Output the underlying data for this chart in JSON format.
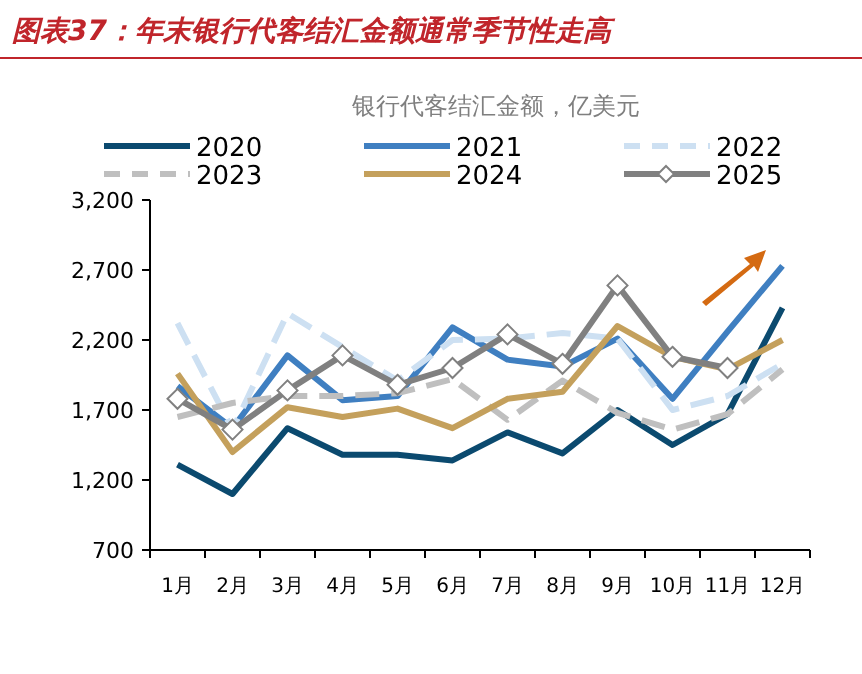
{
  "chart_data": {
    "type": "line",
    "title": "图表37：年末银行代客结汇金额通常季节性走高",
    "subtitle": "银行代客结汇金额，亿美元",
    "categories": [
      "1月",
      "2月",
      "3月",
      "4月",
      "5月",
      "6月",
      "7月",
      "8月",
      "9月",
      "10月",
      "11月",
      "12月"
    ],
    "series": [
      {
        "name": "2020",
        "color": "#0b4a6f",
        "line_style": "solid",
        "values": [
          1310,
          1100,
          1570,
          1380,
          1380,
          1340,
          1540,
          1390,
          1700,
          1450,
          1670,
          2430
        ]
      },
      {
        "name": "2021",
        "color": "#3f7fc1",
        "line_style": "solid",
        "values": [
          1870,
          1570,
          2090,
          1770,
          1800,
          2290,
          2060,
          2010,
          2210,
          1780,
          2260,
          2730
        ]
      },
      {
        "name": "2022",
        "color": "#cde0f2",
        "line_style": "dashed",
        "values": [
          2320,
          1560,
          2390,
          2150,
          1910,
          2200,
          2210,
          2250,
          2210,
          1700,
          1800,
          2030
        ]
      },
      {
        "name": "2023",
        "color": "#bfbfbf",
        "line_style": "dashed",
        "values": [
          1650,
          1750,
          1800,
          1800,
          1820,
          1920,
          1630,
          1910,
          1680,
          1560,
          1670,
          1990
        ]
      },
      {
        "name": "2024",
        "color": "#c4a05c",
        "line_style": "solid",
        "values": [
          1960,
          1400,
          1720,
          1650,
          1710,
          1570,
          1780,
          1830,
          2300,
          2080,
          1990,
          2200
        ]
      },
      {
        "name": "2025",
        "color": "#808080",
        "line_style": "solid",
        "marker": "diamond",
        "values": [
          1780,
          1560,
          1840,
          2090,
          1880,
          2000,
          2240,
          2030,
          2590,
          2080,
          2000,
          null
        ]
      }
    ],
    "ylim": [
      700,
      3200
    ],
    "yticks": [
      700,
      {
        "value": 1200,
        "label": "1,200"
      },
      {
        "value": 1700,
        "label": "1,700"
      },
      {
        "value": 2200,
        "label": "2,200"
      },
      {
        "value": 2700,
        "label": "2,700"
      },
      {
        "value": 3200,
        "label": "3,200"
      }
    ],
    "legend": "top",
    "grid": false
  }
}
